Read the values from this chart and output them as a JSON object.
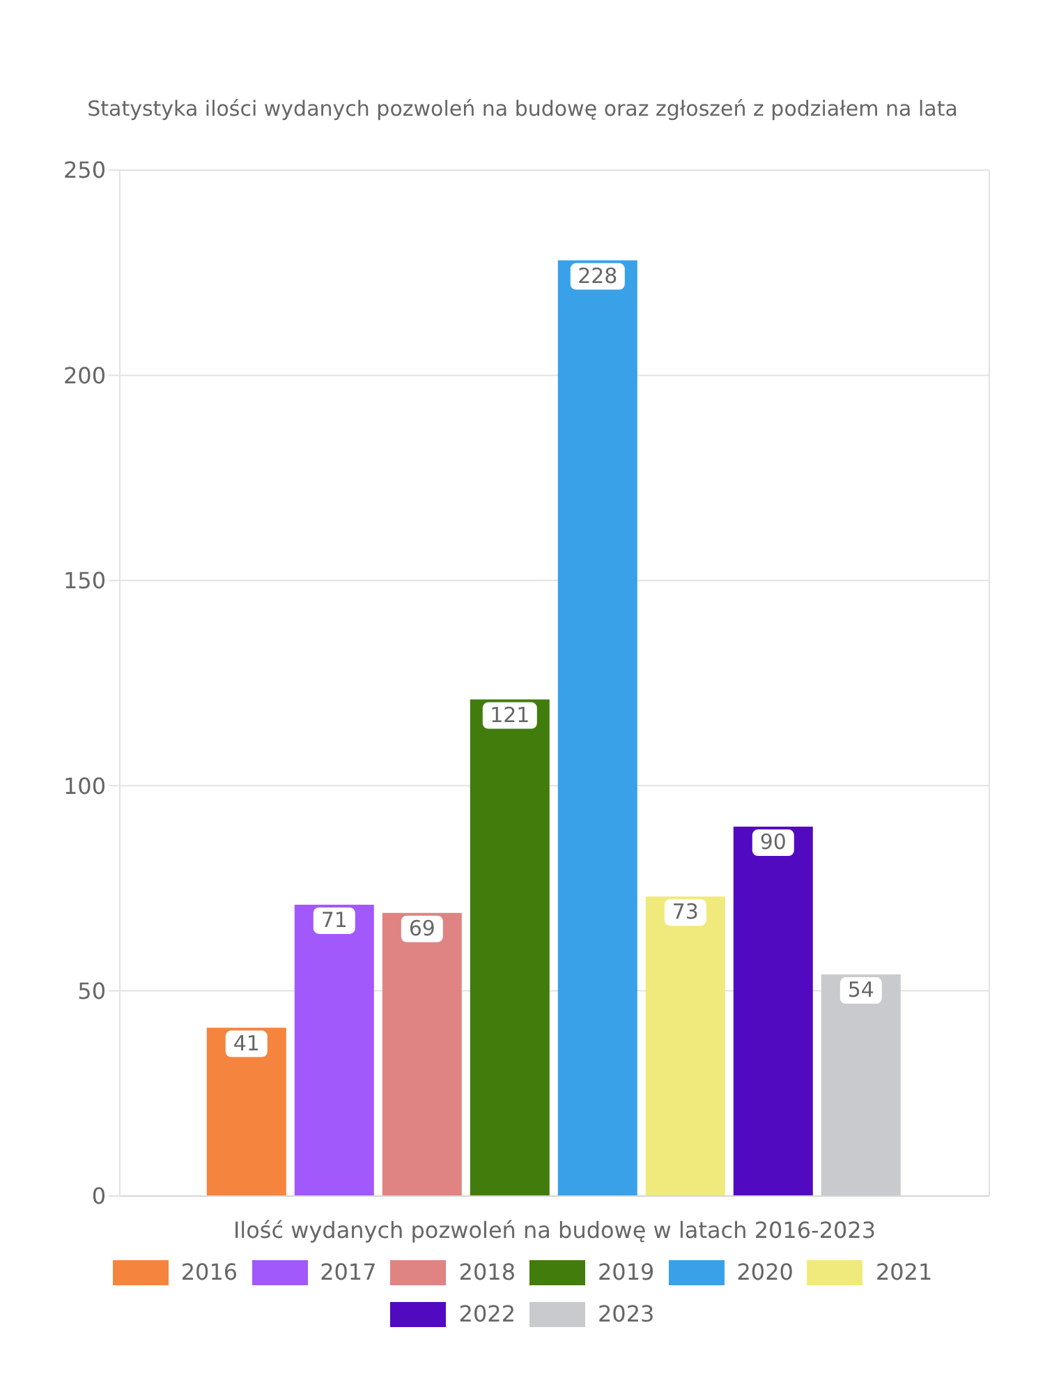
{
  "chart_data": {
    "type": "bar",
    "title": "Statystyka ilości wydanych pozwoleń na budowę oraz zgłoszeń z podziałem na lata",
    "xlabel": "Ilość wydanych pozwoleń na budowę w latach 2016-2023",
    "categories": [
      null
    ],
    "series": [
      {
        "name": "2016",
        "color": "#f5843f",
        "values": [
          41
        ]
      },
      {
        "name": "2017",
        "color": "#a259fb",
        "values": [
          71
        ]
      },
      {
        "name": "2018",
        "color": "#e08383",
        "values": [
          69
        ]
      },
      {
        "name": "2019",
        "color": "#417c0c",
        "values": [
          121
        ]
      },
      {
        "name": "2020",
        "color": "#38a1e8",
        "values": [
          228
        ]
      },
      {
        "name": "2021",
        "color": "#f0ea7d",
        "values": [
          73
        ]
      },
      {
        "name": "2022",
        "color": "#520ac1",
        "values": [
          90
        ]
      },
      {
        "name": "2023",
        "color": "#c9cacd",
        "values": [
          54
        ]
      }
    ],
    "ylim": [
      0,
      250
    ],
    "yticks": [
      0,
      50,
      100,
      150,
      200,
      250
    ],
    "grid": true,
    "legend": "bottom",
    "data_labels": true
  }
}
